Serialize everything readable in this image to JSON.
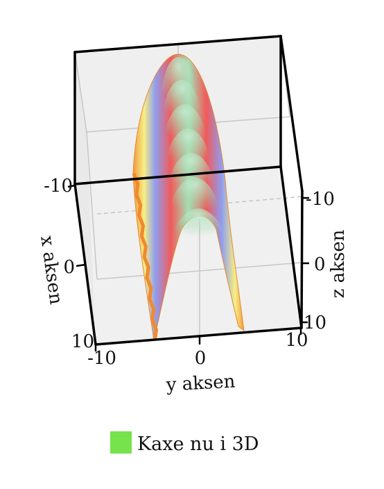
{
  "chart_data": {
    "type": "surface",
    "title": "",
    "x_axis": {
      "label": "x aksen",
      "range": [
        -10,
        10
      ],
      "ticks": [
        "-10",
        "0",
        "10"
      ]
    },
    "y_axis": {
      "label": "y aksen",
      "range": [
        -10,
        10
      ],
      "ticks": [
        "-10",
        "0",
        "10"
      ]
    },
    "z_axis": {
      "label": "z aksen",
      "range": [
        -10,
        10
      ],
      "ticks": [
        "-10",
        "0",
        "10"
      ]
    },
    "surface": {
      "shape": "parabolic ridge (height falls with y^2)",
      "ridge_y": 0,
      "colormap": [
        "#8fd19e",
        "#a6e0b4",
        "#f05a5a",
        "#8f9ef0",
        "#f7ef85",
        "#f09a3e"
      ]
    },
    "grid": true,
    "legend": {
      "placement": "bottom-center",
      "entries": [
        {
          "name": "Kaxe nu i 3D",
          "color": "#76e24c"
        }
      ]
    }
  }
}
